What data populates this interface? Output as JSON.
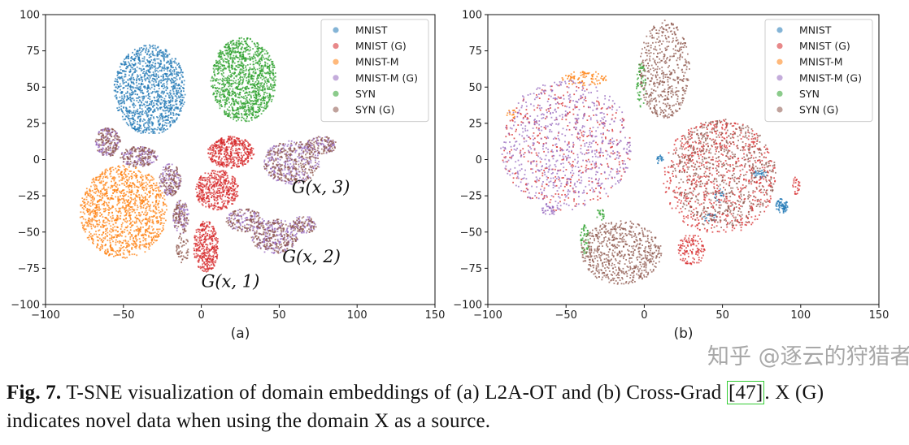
{
  "chart_data": [
    {
      "type": "scatter",
      "sublabel": "(a)",
      "xlim": [
        -100,
        150
      ],
      "ylim": [
        -100,
        100
      ],
      "xticks": [
        -100,
        -50,
        0,
        50,
        100,
        150
      ],
      "yticks": [
        -100,
        -75,
        -50,
        -25,
        0,
        25,
        50,
        75,
        100
      ],
      "legend_position": "top-right",
      "annotations": [
        {
          "text": "G(x, 3)",
          "x": 58,
          "y": -23
        },
        {
          "text": "G(x, 2)",
          "x": 52,
          "y": -71
        },
        {
          "text": "G(x, 1)",
          "x": 0,
          "y": -88
        }
      ],
      "series": [
        {
          "name": "MNIST",
          "color": "#1f77b4",
          "clusters": [
            {
              "cx": -33,
              "cy": 48,
              "rx": 23,
              "ry": 31,
              "n": 1300
            }
          ]
        },
        {
          "name": "MNIST (G)",
          "color": "#d62728",
          "clusters": [
            {
              "cx": 19,
              "cy": 5,
              "rx": 15,
              "ry": 11,
              "n": 450
            },
            {
              "cx": 10,
              "cy": -21,
              "rx": 14,
              "ry": 14,
              "n": 450
            },
            {
              "cx": 3,
              "cy": -60,
              "rx": 8,
              "ry": 18,
              "n": 350
            }
          ]
        },
        {
          "name": "MNIST-M",
          "color": "#ff7f0e",
          "clusters": [
            {
              "cx": -50,
              "cy": -36,
              "rx": 28,
              "ry": 32,
              "n": 1300
            }
          ]
        },
        {
          "name": "MNIST-M (G)",
          "color": "#9467bd",
          "clusters": [
            {
              "cx": -60,
              "cy": 12,
              "rx": 8,
              "ry": 10,
              "n": 120
            },
            {
              "cx": -40,
              "cy": 2,
              "rx": 12,
              "ry": 7,
              "n": 120
            },
            {
              "cx": -20,
              "cy": -14,
              "rx": 7,
              "ry": 11,
              "n": 100
            },
            {
              "cx": -13,
              "cy": -40,
              "rx": 5,
              "ry": 12,
              "n": 80
            },
            {
              "cx": 58,
              "cy": -2,
              "rx": 18,
              "ry": 15,
              "n": 260
            },
            {
              "cx": 77,
              "cy": 10,
              "rx": 10,
              "ry": 6,
              "n": 80
            },
            {
              "cx": 28,
              "cy": -42,
              "rx": 12,
              "ry": 8,
              "n": 100
            },
            {
              "cx": 47,
              "cy": -53,
              "rx": 15,
              "ry": 12,
              "n": 200
            },
            {
              "cx": 66,
              "cy": -45,
              "rx": 8,
              "ry": 6,
              "n": 60
            }
          ]
        },
        {
          "name": "SYN",
          "color": "#2ca02c",
          "clusters": [
            {
              "cx": 27,
              "cy": 55,
              "rx": 21,
              "ry": 29,
              "n": 1300
            }
          ]
        },
        {
          "name": "SYN (G)",
          "color": "#8c564b",
          "clusters": [
            {
              "cx": -60,
              "cy": 12,
              "rx": 8,
              "ry": 10,
              "n": 130
            },
            {
              "cx": -40,
              "cy": 2,
              "rx": 12,
              "ry": 7,
              "n": 130
            },
            {
              "cx": -20,
              "cy": -14,
              "rx": 7,
              "ry": 11,
              "n": 110
            },
            {
              "cx": -13,
              "cy": -40,
              "rx": 5,
              "ry": 12,
              "n": 90
            },
            {
              "cx": -12,
              "cy": -62,
              "rx": 4,
              "ry": 10,
              "n": 50
            },
            {
              "cx": 58,
              "cy": -2,
              "rx": 18,
              "ry": 15,
              "n": 280
            },
            {
              "cx": 77,
              "cy": 10,
              "rx": 10,
              "ry": 6,
              "n": 90
            },
            {
              "cx": 28,
              "cy": -42,
              "rx": 12,
              "ry": 8,
              "n": 110
            },
            {
              "cx": 47,
              "cy": -53,
              "rx": 15,
              "ry": 12,
              "n": 220
            },
            {
              "cx": 66,
              "cy": -45,
              "rx": 8,
              "ry": 6,
              "n": 70
            }
          ]
        }
      ]
    },
    {
      "type": "scatter",
      "sublabel": "(b)",
      "xlim": [
        -100,
        150
      ],
      "ylim": [
        -100,
        100
      ],
      "xticks": [
        -100,
        -50,
        0,
        50,
        100,
        150
      ],
      "yticks": [
        -100,
        -75,
        -50,
        -25,
        0,
        25,
        50,
        75,
        100
      ],
      "legend_position": "top-right",
      "annotations": [],
      "series": [
        {
          "name": "MNIST",
          "color": "#1f77b4",
          "clusters": [
            {
              "cx": 88,
              "cy": -32,
              "rx": 4,
              "ry": 5,
              "n": 70
            },
            {
              "cx": 74,
              "cy": -10,
              "rx": 5,
              "ry": 3,
              "n": 30
            },
            {
              "cx": 10,
              "cy": 0,
              "rx": 3,
              "ry": 3,
              "n": 20
            },
            {
              "cx": 48,
              "cy": -25,
              "rx": 4,
              "ry": 5,
              "n": 20
            },
            {
              "cx": 42,
              "cy": -40,
              "rx": 5,
              "ry": 3,
              "n": 20
            }
          ]
        },
        {
          "name": "MNIST (G)",
          "color": "#d62728",
          "clusters": [
            {
              "cx": 48,
              "cy": -12,
              "rx": 36,
              "ry": 40,
              "n": 700
            },
            {
              "cx": 30,
              "cy": -62,
              "rx": 9,
              "ry": 11,
              "n": 120
            },
            {
              "cx": 97,
              "cy": -18,
              "rx": 3,
              "ry": 6,
              "n": 25
            },
            {
              "cx": -50,
              "cy": 8,
              "rx": 42,
              "ry": 44,
              "n": 400
            }
          ]
        },
        {
          "name": "MNIST-M",
          "color": "#ff7f0e",
          "clusters": [
            {
              "cx": -38,
              "cy": 56,
              "rx": 15,
              "ry": 5,
              "n": 90
            },
            {
              "cx": -85,
              "cy": 32,
              "rx": 3,
              "ry": 4,
              "n": 15
            }
          ]
        },
        {
          "name": "MNIST-M (G)",
          "color": "#9467bd",
          "clusters": [
            {
              "cx": -50,
              "cy": 10,
              "rx": 42,
              "ry": 45,
              "n": 700
            },
            {
              "cx": -60,
              "cy": -35,
              "rx": 6,
              "ry": 3,
              "n": 30
            }
          ]
        },
        {
          "name": "SYN",
          "color": "#2ca02c",
          "clusters": [
            {
              "cx": -2,
              "cy": 52,
              "rx": 3,
              "ry": 16,
              "n": 60
            },
            {
              "cx": -38,
              "cy": -55,
              "rx": 3,
              "ry": 10,
              "n": 50
            },
            {
              "cx": -28,
              "cy": -38,
              "rx": 3,
              "ry": 4,
              "n": 20
            }
          ]
        },
        {
          "name": "SYN (G)",
          "color": "#8c564b",
          "clusters": [
            {
              "cx": 13,
              "cy": 62,
              "rx": 16,
              "ry": 34,
              "n": 500
            },
            {
              "cx": -15,
              "cy": -64,
              "rx": 26,
              "ry": 22,
              "n": 650
            },
            {
              "cx": 50,
              "cy": -10,
              "rx": 34,
              "ry": 38,
              "n": 650
            }
          ]
        }
      ]
    }
  ],
  "caption": {
    "label": "Fig. 7.",
    "text_1": " T-SNE visualization of domain embeddings of (a) L2A-OT and (b) Cross-Grad ",
    "ref": "[47]",
    "text_2": ". X (G) indicates novel data when using the domain X as a source."
  },
  "watermark": "知乎 @逐云的狩猎者"
}
